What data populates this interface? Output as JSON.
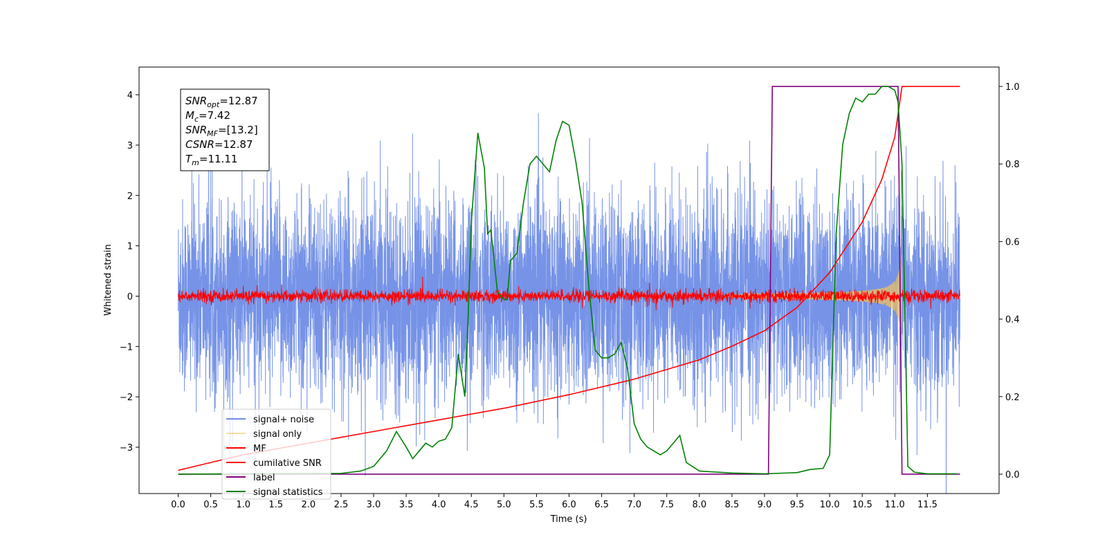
{
  "chart_data": {
    "type": "line",
    "xlabel": "Time (s)",
    "ylabel": "Whitened strain",
    "xlim": [
      -0.6,
      12.6
    ],
    "ylim": [
      -3.92,
      4.55
    ],
    "y2lim": [
      -0.05,
      1.05
    ],
    "x_ticks": [
      "0.0",
      "0.5",
      "1.0",
      "1.5",
      "2.0",
      "2.5",
      "3.0",
      "3.5",
      "4.0",
      "4.5",
      "5.0",
      "5.5",
      "6.0",
      "6.5",
      "7.0",
      "7.5",
      "8.0",
      "8.5",
      "9.0",
      "9.5",
      "10.0",
      "10.5",
      "11.0",
      "11.5"
    ],
    "y_ticks": [
      "−3",
      "−2",
      "−1",
      "0",
      "1",
      "2",
      "3",
      "4"
    ],
    "y2_ticks": [
      "0.0",
      "0.2",
      "0.4",
      "0.6",
      "0.8",
      "1.0"
    ],
    "legend_position": "lower-left",
    "annotation": {
      "lines": [
        {
          "name": "SNR",
          "sub": "opt",
          "value": "=12.87"
        },
        {
          "name": "M",
          "sub": "c",
          "value": "=7.42"
        },
        {
          "name": "SNR",
          "sub": "MF",
          "value": "=[13.2]"
        },
        {
          "name": "CSNR",
          "sub": "",
          "value": "=12.87"
        },
        {
          "name": "T",
          "sub": "m",
          "value": "=11.11"
        }
      ]
    },
    "series": [
      {
        "name": "signal+ noise",
        "color": "#6f8de6",
        "axis": "left",
        "kind": "noise",
        "x_range": [
          0,
          12
        ],
        "amplitude": 1.0
      },
      {
        "name": "signal only",
        "color": "#f5c35a",
        "axis": "left",
        "kind": "chirp",
        "x_range": [
          0,
          11.11
        ]
      },
      {
        "name": "MF",
        "color": "#ff0000",
        "axis": "left",
        "kind": "mf-noise",
        "x_range": [
          0,
          12
        ],
        "amplitude": 0.06
      },
      {
        "name": "cumilative SNR",
        "color": "#ff0000",
        "axis": "right",
        "x": [
          0,
          0.5,
          1,
          2,
          3,
          4,
          5,
          6,
          7,
          8,
          8.5,
          9,
          9.5,
          10,
          10.5,
          10.8,
          11,
          11.11,
          11.2,
          12
        ],
        "y": [
          0.01,
          0.03,
          0.05,
          0.08,
          0.11,
          0.14,
          0.17,
          0.205,
          0.245,
          0.295,
          0.33,
          0.37,
          0.43,
          0.52,
          0.65,
          0.76,
          0.87,
          1.0,
          1.0,
          1.0
        ]
      },
      {
        "name": "label",
        "color": "#800080",
        "axis": "right",
        "x": [
          0,
          9.06,
          9.12,
          11.05,
          11.11,
          12
        ],
        "y": [
          0,
          0,
          1,
          1,
          0,
          0
        ]
      },
      {
        "name": "signal statistics",
        "color": "#008000",
        "axis": "right",
        "x": [
          0,
          2.5,
          2.8,
          3.0,
          3.2,
          3.35,
          3.5,
          3.6,
          3.7,
          3.8,
          3.9,
          4.0,
          4.1,
          4.2,
          4.3,
          4.4,
          4.45,
          4.5,
          4.6,
          4.7,
          4.75,
          4.8,
          4.9,
          5.0,
          5.05,
          5.1,
          5.2,
          5.3,
          5.4,
          5.5,
          5.6,
          5.7,
          5.8,
          5.9,
          6.0,
          6.1,
          6.2,
          6.3,
          6.4,
          6.5,
          6.6,
          6.7,
          6.8,
          6.9,
          7.0,
          7.1,
          7.2,
          7.3,
          7.4,
          7.5,
          7.6,
          7.7,
          7.8,
          8.0,
          8.5,
          9.0,
          9.5,
          9.7,
          9.9,
          10.0,
          10.1,
          10.2,
          10.3,
          10.4,
          10.5,
          10.6,
          10.7,
          10.8,
          10.9,
          11.0,
          11.05,
          11.11,
          11.2,
          11.3,
          11.5,
          11.95
        ],
        "y": [
          0,
          0.002,
          0.008,
          0.02,
          0.06,
          0.11,
          0.07,
          0.04,
          0.06,
          0.08,
          0.07,
          0.085,
          0.09,
          0.12,
          0.31,
          0.2,
          0.4,
          0.65,
          0.88,
          0.79,
          0.62,
          0.63,
          0.47,
          0.45,
          0.45,
          0.55,
          0.57,
          0.7,
          0.8,
          0.82,
          0.8,
          0.78,
          0.86,
          0.91,
          0.9,
          0.81,
          0.7,
          0.49,
          0.32,
          0.3,
          0.3,
          0.31,
          0.34,
          0.27,
          0.13,
          0.09,
          0.07,
          0.06,
          0.05,
          0.06,
          0.08,
          0.1,
          0.03,
          0.008,
          0.003,
          0.001,
          0.004,
          0.012,
          0.015,
          0.05,
          0.62,
          0.85,
          0.93,
          0.97,
          0.96,
          0.98,
          0.98,
          1.0,
          1.0,
          0.99,
          0.96,
          0.8,
          0.02,
          0.005,
          0.001,
          0.001
        ]
      }
    ]
  }
}
